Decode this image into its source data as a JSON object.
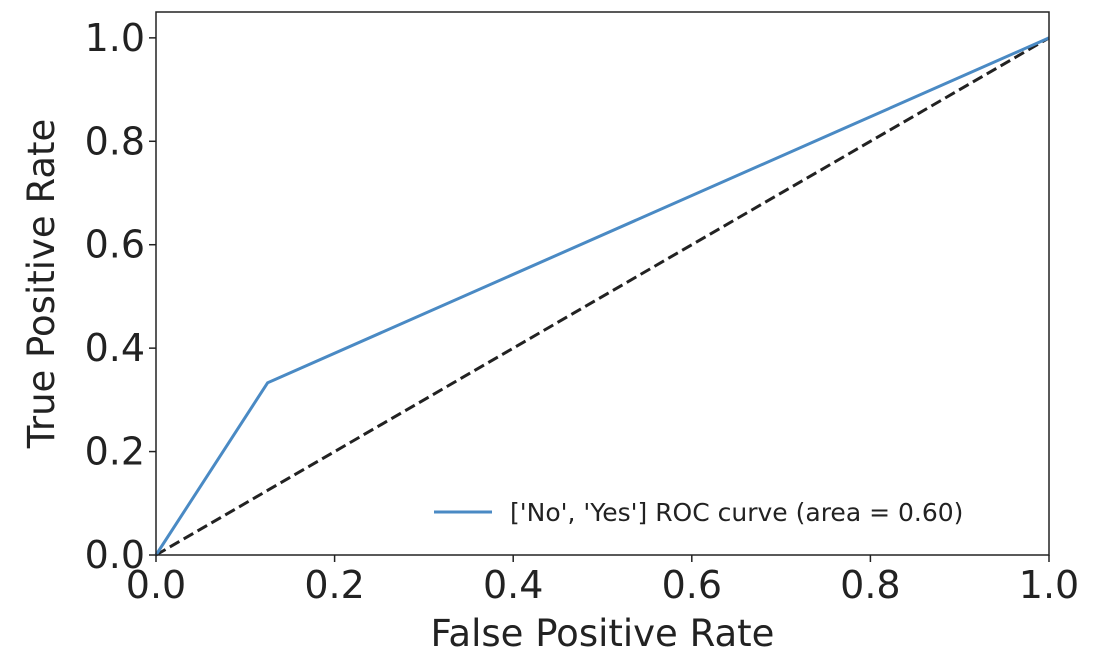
{
  "chart_data": {
    "type": "line",
    "xlabel": "False Positive Rate",
    "ylabel": "True Positive Rate",
    "xlim": [
      0.0,
      1.0
    ],
    "ylim": [
      0.0,
      1.05
    ],
    "x_ticks": [
      0.0,
      0.2,
      0.4,
      0.6,
      0.8,
      1.0
    ],
    "y_ticks": [
      0.0,
      0.2,
      0.4,
      0.6,
      0.8,
      1.0
    ],
    "x_tick_labels": [
      "0.0",
      "0.2",
      "0.4",
      "0.6",
      "0.8",
      "1.0"
    ],
    "y_tick_labels": [
      "0.0",
      "0.2",
      "0.4",
      "0.6",
      "0.8",
      "1.0"
    ],
    "grid": false,
    "legend_position": "lower-right",
    "series": [
      {
        "name": "['No', 'Yes'] ROC curve (area = 0.60)",
        "color": "#4a8ac4",
        "style": "solid",
        "x": [
          0.0,
          0.125,
          1.0
        ],
        "y": [
          0.0,
          0.333,
          1.0
        ]
      },
      {
        "color": "#222222",
        "style": "dashed",
        "x": [
          0.0,
          1.0
        ],
        "y": [
          0.0,
          1.0
        ]
      }
    ]
  }
}
